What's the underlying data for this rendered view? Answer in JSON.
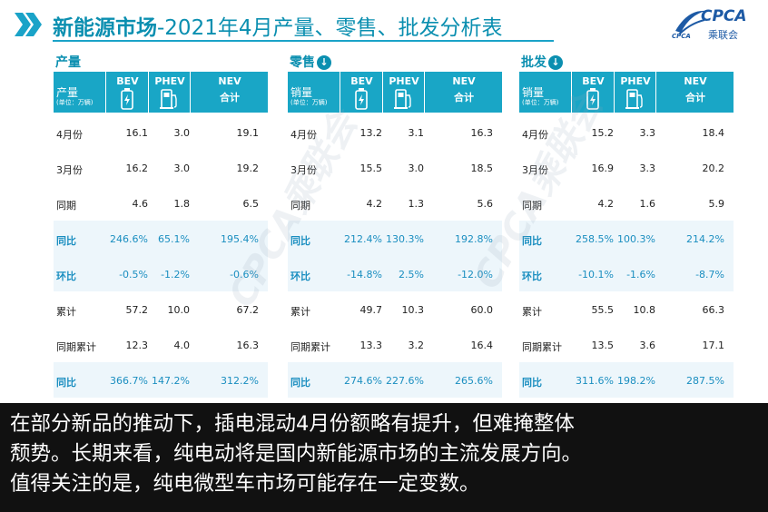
{
  "header": {
    "title_bold": "新能源市场",
    "title_rest": "-2021年4月产量、零售、批发分析表",
    "logo_text": "CPCA",
    "logo_cn": "乘联会",
    "logo_small": "CPCA"
  },
  "watermark": "CPCA乘联会",
  "panels": [
    {
      "label": "产量",
      "down_icon": false,
      "unit_main": "产量",
      "unit_sub": "(单位：万辆)",
      "columns": [
        "BEV",
        "PHEV",
        "NEV",
        "合计"
      ],
      "rows": [
        {
          "label": "4月份",
          "bev": "16.1",
          "phev": "3.0",
          "nev": "19.1",
          "highlight": false
        },
        {
          "label": "3月份",
          "bev": "16.2",
          "phev": "3.0",
          "nev": "19.2",
          "highlight": false
        },
        {
          "label": "同期",
          "bev": "4.6",
          "phev": "1.8",
          "nev": "6.5",
          "highlight": false
        },
        {
          "label": "同比",
          "bev": "246.6%",
          "phev": "65.1%",
          "nev": "195.4%",
          "highlight": true
        },
        {
          "label": "环比",
          "bev": "-0.5%",
          "phev": "-1.2%",
          "nev": "-0.6%",
          "highlight": true
        },
        {
          "label": "累计",
          "bev": "57.2",
          "phev": "10.0",
          "nev": "67.2",
          "highlight": false
        },
        {
          "label": "同期累计",
          "bev": "12.3",
          "phev": "4.0",
          "nev": "16.3",
          "highlight": false
        },
        {
          "label": "同比",
          "bev": "366.7%",
          "phev": "147.2%",
          "nev": "312.2%",
          "highlight": true
        }
      ]
    },
    {
      "label": "零售",
      "down_icon": true,
      "unit_main": "销量",
      "unit_sub": "(单位：万辆)",
      "columns": [
        "BEV",
        "PHEV",
        "NEV",
        "合计"
      ],
      "rows": [
        {
          "label": "4月份",
          "bev": "13.2",
          "phev": "3.1",
          "nev": "16.3",
          "highlight": false
        },
        {
          "label": "3月份",
          "bev": "15.5",
          "phev": "3.0",
          "nev": "18.5",
          "highlight": false
        },
        {
          "label": "同期",
          "bev": "4.2",
          "phev": "1.3",
          "nev": "5.6",
          "highlight": false
        },
        {
          "label": "同比",
          "bev": "212.4%",
          "phev": "130.3%",
          "nev": "192.8%",
          "highlight": true
        },
        {
          "label": "环比",
          "bev": "-14.8%",
          "phev": "2.5%",
          "nev": "-12.0%",
          "highlight": true
        },
        {
          "label": "累计",
          "bev": "49.7",
          "phev": "10.3",
          "nev": "60.0",
          "highlight": false
        },
        {
          "label": "同期累计",
          "bev": "13.3",
          "phev": "3.2",
          "nev": "16.4",
          "highlight": false
        },
        {
          "label": "同比",
          "bev": "274.6%",
          "phev": "227.6%",
          "nev": "265.6%",
          "highlight": true
        }
      ]
    },
    {
      "label": "批发",
      "down_icon": true,
      "unit_main": "销量",
      "unit_sub": "(单位：万辆)",
      "columns": [
        "BEV",
        "PHEV",
        "NEV",
        "合计"
      ],
      "rows": [
        {
          "label": "4月份",
          "bev": "15.2",
          "phev": "3.3",
          "nev": "18.4",
          "highlight": false
        },
        {
          "label": "3月份",
          "bev": "16.9",
          "phev": "3.3",
          "nev": "20.2",
          "highlight": false
        },
        {
          "label": "同期",
          "bev": "4.2",
          "phev": "1.6",
          "nev": "5.9",
          "highlight": false
        },
        {
          "label": "同比",
          "bev": "258.5%",
          "phev": "100.3%",
          "nev": "214.2%",
          "highlight": true
        },
        {
          "label": "环比",
          "bev": "-10.1%",
          "phev": "-1.6%",
          "nev": "-8.7%",
          "highlight": true
        },
        {
          "label": "累计",
          "bev": "55.5",
          "phev": "10.8",
          "nev": "66.3",
          "highlight": false
        },
        {
          "label": "同期累计",
          "bev": "13.5",
          "phev": "3.6",
          "nev": "17.1",
          "highlight": false
        },
        {
          "label": "同比",
          "bev": "311.6%",
          "phev": "198.2%",
          "nev": "287.5%",
          "highlight": true
        }
      ]
    }
  ],
  "caption": [
    "在部分新品的推动下，插电混动4月份额略有提升，但难掩整体",
    "颓势。长期来看，纯电动将是国内新能源市场的主流发展方向。",
    "值得关注的是，纯电微型车市场可能存在一定变数。"
  ],
  "colors": {
    "accent": "#19a6c6",
    "title": "#0b8fb0",
    "highlight_text": "#1a8ec0",
    "caption_bg": "#111111"
  }
}
